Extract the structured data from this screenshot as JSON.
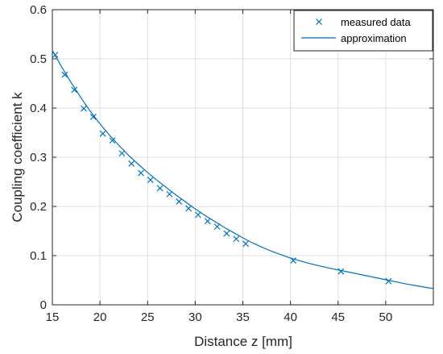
{
  "chart_data": {
    "type": "scatter",
    "title": "",
    "xlabel": "Distance z [mm]",
    "ylabel": "Coupling coefficient k",
    "xlim": [
      15,
      55
    ],
    "ylim": [
      0,
      0.6
    ],
    "xticks": [
      15,
      20,
      25,
      30,
      35,
      40,
      45,
      50
    ],
    "yticks": [
      0,
      0.1,
      0.2,
      0.3,
      0.4,
      0.5,
      0.6
    ],
    "xtick_labels": [
      "15",
      "20",
      "25",
      "30",
      "35",
      "40",
      "45",
      "50"
    ],
    "ytick_labels": [
      "0",
      "0.1",
      "0.2",
      "0.3",
      "0.4",
      "0.5",
      "0.6"
    ],
    "grid": true,
    "legend_position": "top-right",
    "color": "#0072BD",
    "series": [
      {
        "name": "measured data",
        "style": "x-marker",
        "x": [
          15.3,
          16.3,
          17.3,
          18.3,
          19.3,
          20.3,
          21.3,
          22.3,
          23.3,
          24.3,
          25.3,
          26.3,
          27.3,
          28.3,
          29.3,
          30.3,
          31.3,
          32.3,
          33.3,
          34.3,
          35.3,
          40.3,
          45.3,
          50.3
        ],
        "y": [
          0.508,
          0.468,
          0.437,
          0.399,
          0.382,
          0.348,
          0.334,
          0.308,
          0.287,
          0.268,
          0.254,
          0.237,
          0.225,
          0.21,
          0.196,
          0.183,
          0.17,
          0.159,
          0.145,
          0.134,
          0.124,
          0.09,
          0.068,
          0.048
        ]
      },
      {
        "name": "approximation",
        "style": "line",
        "x": [
          15,
          16,
          17,
          18,
          19,
          20,
          21,
          22,
          23,
          24,
          25,
          26,
          27,
          28,
          29,
          30,
          31,
          32,
          33,
          34,
          35,
          36,
          37,
          38,
          39,
          40,
          42,
          44,
          46,
          48,
          50,
          52,
          54,
          55
        ],
        "y": [
          0.517,
          0.483,
          0.451,
          0.421,
          0.393,
          0.368,
          0.345,
          0.324,
          0.304,
          0.286,
          0.269,
          0.253,
          0.238,
          0.223,
          0.209,
          0.195,
          0.182,
          0.17,
          0.158,
          0.147,
          0.136,
          0.126,
          0.117,
          0.109,
          0.102,
          0.095,
          0.084,
          0.075,
          0.067,
          0.059,
          0.051,
          0.043,
          0.036,
          0.033
        ]
      }
    ]
  }
}
